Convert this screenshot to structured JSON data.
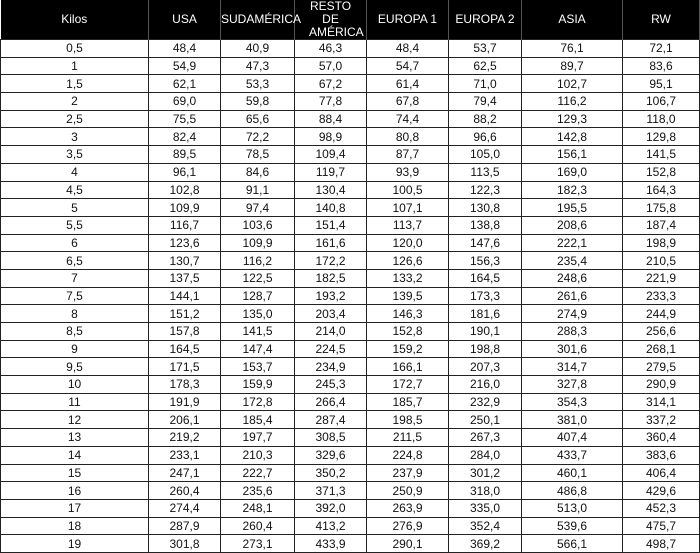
{
  "table": {
    "headers": [
      "Kilos",
      "USA",
      "SUDAMÉRICA",
      "RESTO DE AMÉRICA",
      "EUROPA 1",
      "EUROPA 2",
      "ASIA",
      "RW"
    ],
    "rows": [
      [
        "0,5",
        "48,4",
        "40,9",
        "46,3",
        "48,4",
        "53,7",
        "76,1",
        "72,1"
      ],
      [
        "1",
        "54,9",
        "47,3",
        "57,0",
        "54,7",
        "62,5",
        "89,7",
        "83,6"
      ],
      [
        "1,5",
        "62,1",
        "53,3",
        "67,2",
        "61,4",
        "71,0",
        "102,7",
        "95,1"
      ],
      [
        "2",
        "69,0",
        "59,8",
        "77,8",
        "67,8",
        "79,4",
        "116,2",
        "106,7"
      ],
      [
        "2,5",
        "75,5",
        "65,6",
        "88,4",
        "74,4",
        "88,2",
        "129,3",
        "118,0"
      ],
      [
        "3",
        "82,4",
        "72,2",
        "98,9",
        "80,8",
        "96,6",
        "142,8",
        "129,8"
      ],
      [
        "3,5",
        "89,5",
        "78,5",
        "109,4",
        "87,7",
        "105,0",
        "156,1",
        "141,5"
      ],
      [
        "4",
        "96,1",
        "84,6",
        "119,7",
        "93,9",
        "113,5",
        "169,0",
        "152,8"
      ],
      [
        "4,5",
        "102,8",
        "91,1",
        "130,4",
        "100,5",
        "122,3",
        "182,3",
        "164,3"
      ],
      [
        "5",
        "109,9",
        "97,4",
        "140,8",
        "107,1",
        "130,8",
        "195,5",
        "175,8"
      ],
      [
        "5,5",
        "116,7",
        "103,6",
        "151,4",
        "113,7",
        "138,8",
        "208,6",
        "187,4"
      ],
      [
        "6",
        "123,6",
        "109,9",
        "161,6",
        "120,0",
        "147,6",
        "222,1",
        "198,9"
      ],
      [
        "6,5",
        "130,7",
        "116,2",
        "172,2",
        "126,6",
        "156,3",
        "235,4",
        "210,5"
      ],
      [
        "7",
        "137,5",
        "122,5",
        "182,5",
        "133,2",
        "164,5",
        "248,6",
        "221,9"
      ],
      [
        "7,5",
        "144,1",
        "128,7",
        "193,2",
        "139,5",
        "173,3",
        "261,6",
        "233,3"
      ],
      [
        "8",
        "151,2",
        "135,0",
        "203,4",
        "146,3",
        "181,6",
        "274,9",
        "244,9"
      ],
      [
        "8,5",
        "157,8",
        "141,5",
        "214,0",
        "152,8",
        "190,1",
        "288,3",
        "256,6"
      ],
      [
        "9",
        "164,5",
        "147,4",
        "224,5",
        "159,2",
        "198,8",
        "301,6",
        "268,1"
      ],
      [
        "9,5",
        "171,5",
        "153,7",
        "234,9",
        "166,1",
        "207,3",
        "314,7",
        "279,5"
      ],
      [
        "10",
        "178,3",
        "159,9",
        "245,3",
        "172,7",
        "216,0",
        "327,8",
        "290,9"
      ],
      [
        "11",
        "191,9",
        "172,8",
        "266,4",
        "185,7",
        "232,9",
        "354,3",
        "314,1"
      ],
      [
        "12",
        "206,1",
        "185,4",
        "287,4",
        "198,5",
        "250,1",
        "381,0",
        "337,2"
      ],
      [
        "13",
        "219,2",
        "197,7",
        "308,5",
        "211,5",
        "267,3",
        "407,4",
        "360,4"
      ],
      [
        "14",
        "233,1",
        "210,3",
        "329,6",
        "224,8",
        "284,0",
        "433,7",
        "383,6"
      ],
      [
        "15",
        "247,1",
        "222,7",
        "350,2",
        "237,9",
        "301,2",
        "460,1",
        "406,4"
      ],
      [
        "16",
        "260,4",
        "235,6",
        "371,3",
        "250,9",
        "318,0",
        "486,8",
        "429,6"
      ],
      [
        "17",
        "274,4",
        "248,1",
        "392,0",
        "263,9",
        "335,0",
        "513,0",
        "452,3"
      ],
      [
        "18",
        "287,9",
        "260,4",
        "413,2",
        "276,9",
        "352,4",
        "539,6",
        "475,7"
      ],
      [
        "19",
        "301,8",
        "273,1",
        "433,9",
        "290,1",
        "369,2",
        "566,1",
        "498,7"
      ]
    ]
  }
}
